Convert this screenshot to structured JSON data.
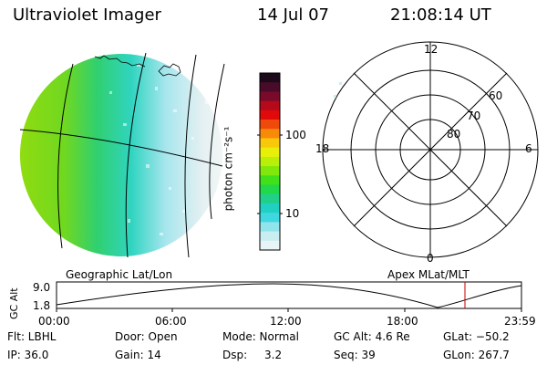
{
  "header": {
    "title": "Ultraviolet Imager",
    "date": "14 Jul 07",
    "time": "21:08:14 UT"
  },
  "colorbar": {
    "unit_label": "photon cm⁻²s⁻¹",
    "ticks": [
      "100",
      "10"
    ],
    "colors": [
      "#1a0a1a",
      "#4a0a2a",
      "#7a0a2a",
      "#b40a1a",
      "#e00a0a",
      "#f04a0a",
      "#f88a0a",
      "#f8c80a",
      "#e8f00a",
      "#b8f00a",
      "#80e80a",
      "#40e01a",
      "#20d84a",
      "#20d08a",
      "#20d0c0",
      "#40d8e0",
      "#90e4ec",
      "#c8eef2",
      "#e8f4f6"
    ]
  },
  "left_panel": {
    "caption": "Geographic Lat/Lon"
  },
  "right_panel": {
    "caption": "Apex  MLat/MLT",
    "mlt_labels": {
      "top": "12",
      "bottom": "0",
      "left": "18",
      "right": "6"
    },
    "lat_labels": [
      "60",
      "70",
      "80"
    ]
  },
  "orbit": {
    "axis_label": "GC Alt",
    "y_ticks": [
      "9.0",
      "1.8"
    ],
    "x_ticks": [
      "00:00",
      "06:00",
      "12:00",
      "18:00",
      "23:59"
    ],
    "marker_color": "#c00000"
  },
  "footer": {
    "flt": "Flt: LBHL",
    "ip": "IP: 36.0",
    "door": "Door: Open",
    "gain": "Gain: 14",
    "mode": "Mode: Normal",
    "dsp_label": "Dsp:",
    "dsp_value": "3.2",
    "gcalt": "GC Alt: 4.6 Re",
    "seq": "Seq: 39",
    "glat": "GLat: −50.2",
    "glon": "GLon: 267.7"
  }
}
